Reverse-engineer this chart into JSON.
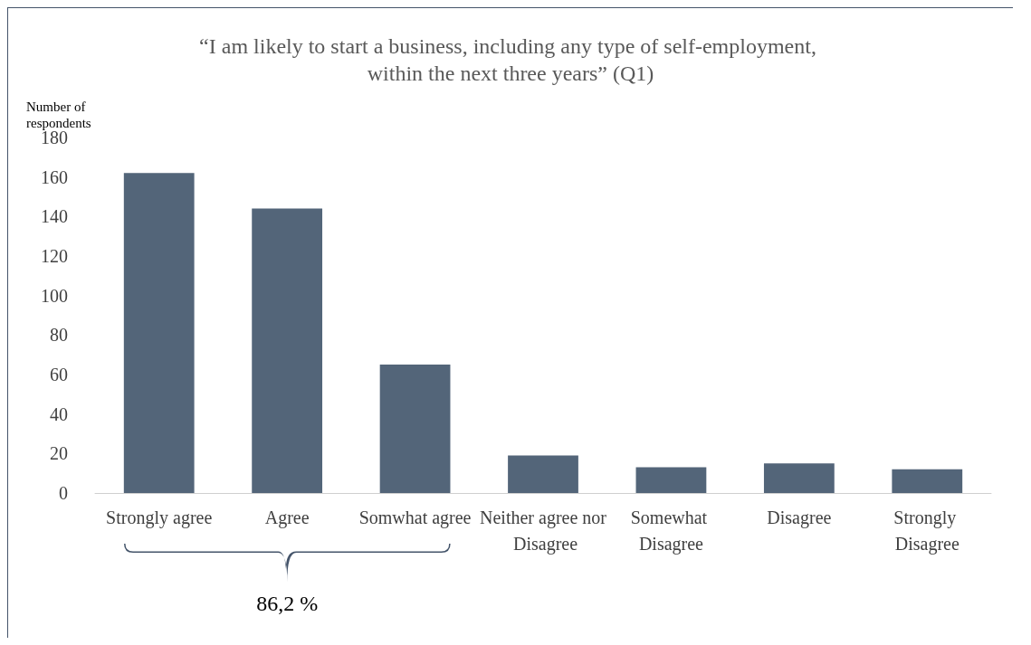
{
  "chart_data": {
    "type": "bar",
    "title": "“I am likely to start a business, including any type of self-employment, within the next three years” (Q1)",
    "ylabel": "Number of respondents",
    "categories": [
      "Strongly agree",
      "Agree",
      "Somwhat agree",
      "Neither agree nor Disagree",
      "Somewhat Disagree",
      "Disagree",
      "Strongly Disagree"
    ],
    "values": [
      162,
      144,
      65,
      19,
      13,
      15,
      12
    ],
    "color": "#536579",
    "ylim": [
      0,
      180
    ],
    "yticks": [
      0,
      20,
      40,
      60,
      80,
      100,
      120,
      140,
      160,
      180
    ],
    "grid": false,
    "annotations": [
      "86,2 %"
    ]
  }
}
